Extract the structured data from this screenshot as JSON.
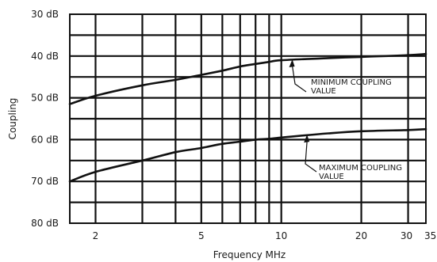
{
  "chart_data": {
    "type": "line",
    "xlabel": "Frequency MHz",
    "ylabel": "Coupling",
    "x_scale": "log",
    "y_inverted": true,
    "xlim": [
      1.6,
      35
    ],
    "ylim": [
      30,
      80
    ],
    "x_ticks": [
      {
        "value": 2,
        "label": "2"
      },
      {
        "value": 5,
        "label": "5"
      },
      {
        "value": 10,
        "label": "10"
      },
      {
        "value": 20,
        "label": "20"
      },
      {
        "value": 30,
        "label": "30"
      },
      {
        "value": 35,
        "label": "35"
      }
    ],
    "y_ticks": [
      {
        "value": 30,
        "label": "30 dB"
      },
      {
        "value": 40,
        "label": "40 dB"
      },
      {
        "value": 50,
        "label": "50 dB"
      },
      {
        "value": 60,
        "label": "60 dB"
      },
      {
        "value": 70,
        "label": "70 dB"
      },
      {
        "value": 80,
        "label": "80 dB"
      }
    ],
    "x_gridlines": [
      2,
      3,
      4,
      5,
      6,
      7,
      8,
      9,
      10,
      20,
      30
    ],
    "y_gridlines": [
      35,
      40,
      45,
      50,
      55,
      60,
      65,
      70,
      75
    ],
    "grid": true,
    "series": [
      {
        "x": [
          1.6,
          2,
          3,
          4,
          5,
          6,
          7,
          8,
          9,
          10,
          15,
          20,
          30,
          35
        ],
        "y": [
          51.5,
          49.5,
          47.0,
          45.7,
          44.5,
          43.5,
          42.5,
          41.9,
          41.4,
          41.0,
          40.5,
          40.2,
          39.8,
          39.5
        ]
      },
      {
        "x": [
          1.6,
          2,
          3,
          4,
          5,
          6,
          7,
          8,
          9,
          10,
          15,
          20,
          30,
          35
        ],
        "y": [
          70.0,
          67.7,
          65.0,
          63.0,
          62.0,
          61.0,
          60.5,
          60.0,
          59.8,
          59.5,
          58.5,
          58.0,
          57.7,
          57.5
        ]
      }
    ],
    "annotations": [
      {
        "lines": [
          "MINIMUM COUPLING",
          "VALUE"
        ],
        "target_series": 0
      },
      {
        "lines": [
          "MAXIMUM COUPLING",
          "VALUE"
        ],
        "target_series": 1
      }
    ]
  }
}
